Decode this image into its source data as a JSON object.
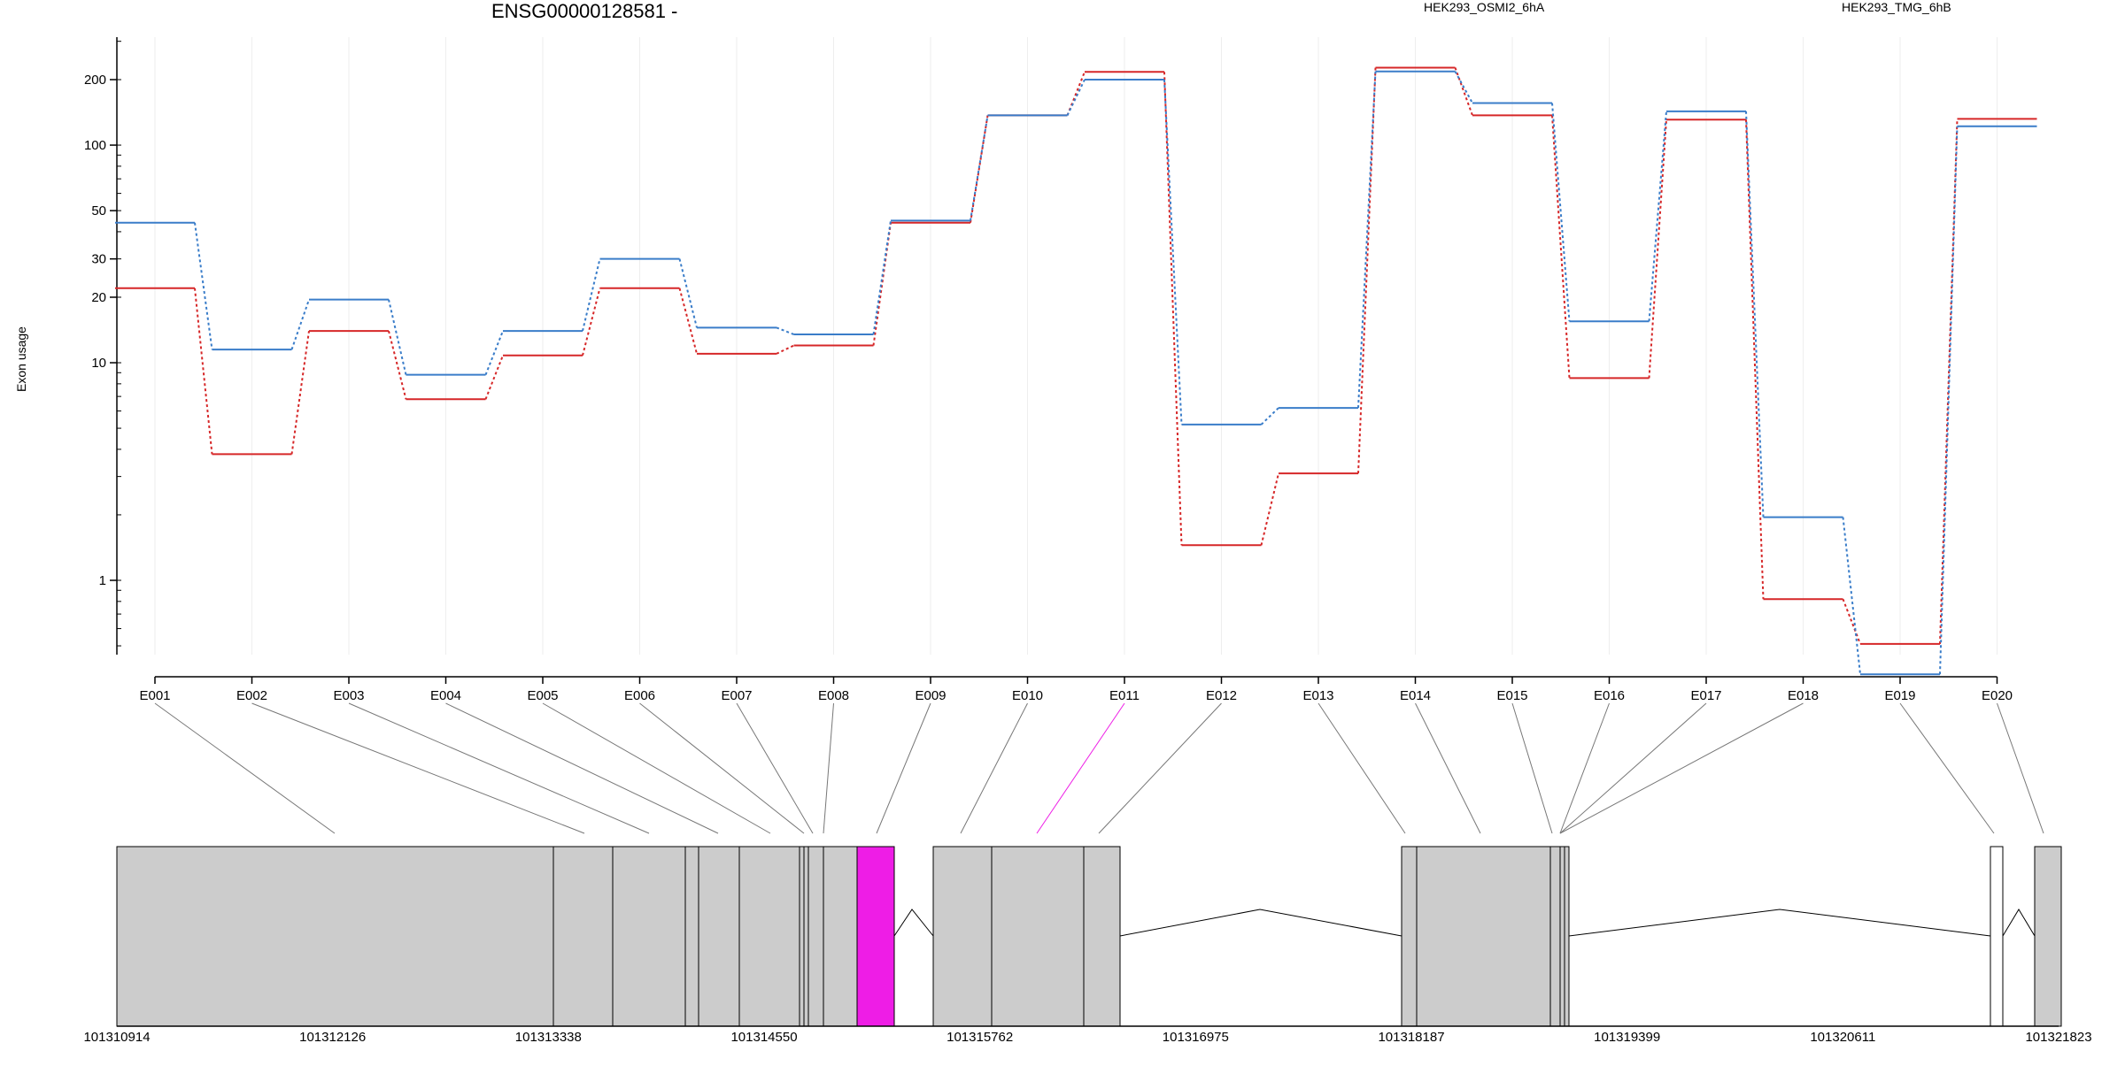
{
  "chart_data": {
    "type": "line",
    "title": "ENSG00000128581 -",
    "ylabel": "Exon usage",
    "yscale": "log",
    "ylim": [
      0.4,
      300
    ],
    "yticks": [
      "200",
      "100",
      "50",
      "30",
      "20",
      "10",
      "1"
    ],
    "categories": [
      "E001",
      "E002",
      "E003",
      "E004",
      "E005",
      "E006",
      "E007",
      "E008",
      "E009",
      "E010",
      "E011",
      "E012",
      "E013",
      "E014",
      "E015",
      "E016",
      "E017",
      "E018",
      "E019",
      "E020"
    ],
    "series": [
      {
        "name": "HEK293_OSMI2_6hA",
        "color": "#d62728",
        "values": [
          22,
          3.8,
          14,
          6.8,
          10.8,
          22,
          11,
          12,
          44,
          137,
          217,
          1.45,
          3.1,
          227,
          137,
          8.5,
          131,
          0.82,
          0.51,
          132
        ]
      },
      {
        "name": "HEK293_TMG_6hB",
        "color": "#3a7dc9",
        "values": [
          44,
          11.5,
          19.5,
          8.8,
          14,
          30,
          14.5,
          13.5,
          45,
          137,
          200,
          5.2,
          6.2,
          218,
          156,
          15.5,
          143,
          1.95,
          0.37,
          122
        ]
      }
    ],
    "gene_model": {
      "coordinate_ticks": [
        "101310914",
        "101312126",
        "101313338",
        "101314550",
        "101315762",
        "101316975",
        "101318187",
        "101319399",
        "101320611",
        "101321823"
      ],
      "highlight_color": "#ee1de6",
      "exon_fill": "#cccccc"
    }
  }
}
